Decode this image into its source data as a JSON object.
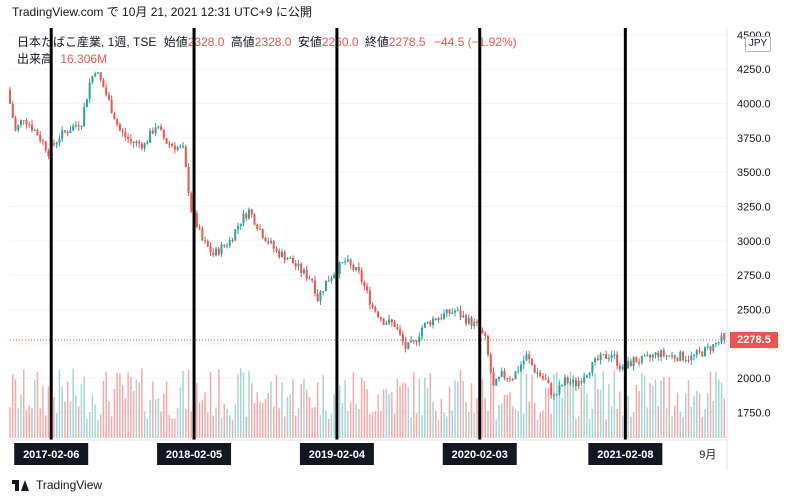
{
  "header": {
    "text": "TradingView.com で 10月 21, 2021 12:31 UTC+9 に公開"
  },
  "legend": {
    "symbol": "日本たばこ産業, 1週, TSE",
    "open_label": "始値",
    "open": "2328.0",
    "high_label": "高値",
    "high": "2328.0",
    "low_label": "安値",
    "low": "2260.0",
    "close_label": "終値",
    "close": "2278.5",
    "change": "−44.5 (−1.92%)",
    "volume_label": "出来高",
    "volume": "16.306M"
  },
  "currency": "JPY",
  "last_price_label": "2278.5",
  "footer": {
    "brand": "TradingView"
  },
  "colors": {
    "up": "#26a69a",
    "down": "#ef5350",
    "up_vol": "#a5d6d3",
    "down_vol": "#f7a9a7",
    "marker": "#000000"
  },
  "chart_data": {
    "type": "candlestick",
    "title": "",
    "xlabel": "",
    "ylabel": "",
    "ylim": [
      1550,
      4550
    ],
    "yticks": [
      1750,
      2000,
      2250,
      2500,
      2750,
      3000,
      3250,
      3500,
      3750,
      4000,
      4250,
      4500
    ],
    "ytick_labels": [
      "1750.0",
      "2000.0",
      "2250.0",
      "2500.0",
      "2750.0",
      "3000.0",
      "3250.0",
      "3500.0",
      "3750.0",
      "4000.0",
      "4250.0",
      "4500.0"
    ],
    "x_start": "2016-10-24",
    "x_end": "2021-10-25",
    "x_tick_labels": [
      {
        "date": "2021-09-06",
        "label": "9月"
      }
    ],
    "last_price": 2278.5,
    "markers": [
      {
        "date": "2017-02-06",
        "label": "2017-02-06"
      },
      {
        "date": "2018-02-05",
        "label": "2018-02-05"
      },
      {
        "date": "2019-02-04",
        "label": "2019-02-04"
      },
      {
        "date": "2020-02-03",
        "label": "2020-02-03"
      },
      {
        "date": "2021-02-08",
        "label": "2021-02-08"
      }
    ],
    "price_path": [
      [
        "2016-10-24",
        4100
      ],
      [
        "2016-11-14",
        3800
      ],
      [
        "2016-12-05",
        3900
      ],
      [
        "2017-01-09",
        3780
      ],
      [
        "2017-02-06",
        3650
      ],
      [
        "2017-03-06",
        3760
      ],
      [
        "2017-04-03",
        3820
      ],
      [
        "2017-05-01",
        3870
      ],
      [
        "2017-05-22",
        4150
      ],
      [
        "2017-06-05",
        4250
      ],
      [
        "2017-06-26",
        4120
      ],
      [
        "2017-08-07",
        3800
      ],
      [
        "2017-09-04",
        3720
      ],
      [
        "2017-10-09",
        3700
      ],
      [
        "2017-11-06",
        3840
      ],
      [
        "2017-12-04",
        3720
      ],
      [
        "2018-01-15",
        3660
      ],
      [
        "2018-02-05",
        3230
      ],
      [
        "2018-03-05",
        3000
      ],
      [
        "2018-04-02",
        2900
      ],
      [
        "2018-05-14",
        3000
      ],
      [
        "2018-06-11",
        3150
      ],
      [
        "2018-07-02",
        3220
      ],
      [
        "2018-08-06",
        3050
      ],
      [
        "2018-09-10",
        2920
      ],
      [
        "2018-10-08",
        2880
      ],
      [
        "2018-11-12",
        2780
      ],
      [
        "2018-12-10",
        2720
      ],
      [
        "2018-12-24",
        2580
      ],
      [
        "2019-01-14",
        2700
      ],
      [
        "2019-02-04",
        2770
      ],
      [
        "2019-03-04",
        2850
      ],
      [
        "2019-04-08",
        2760
      ],
      [
        "2019-05-13",
        2520
      ],
      [
        "2019-06-10",
        2420
      ],
      [
        "2019-07-08",
        2390
      ],
      [
        "2019-08-05",
        2220
      ],
      [
        "2019-08-26",
        2250
      ],
      [
        "2019-09-16",
        2370
      ],
      [
        "2019-10-14",
        2430
      ],
      [
        "2019-11-11",
        2460
      ],
      [
        "2019-12-09",
        2490
      ],
      [
        "2020-01-06",
        2430
      ],
      [
        "2020-02-03",
        2380
      ],
      [
        "2020-02-24",
        2280
      ],
      [
        "2020-03-16",
        1930
      ],
      [
        "2020-04-06",
        2020
      ],
      [
        "2020-05-04",
        2010
      ],
      [
        "2020-06-08",
        2160
      ],
      [
        "2020-06-29",
        2060
      ],
      [
        "2020-07-27",
        1980
      ],
      [
        "2020-08-17",
        1860
      ],
      [
        "2020-09-14",
        1980
      ],
      [
        "2020-10-12",
        1960
      ],
      [
        "2020-11-09",
        2050
      ],
      [
        "2020-12-07",
        2130
      ],
      [
        "2021-01-11",
        2180
      ],
      [
        "2021-02-08",
        2060
      ],
      [
        "2021-03-08",
        2130
      ],
      [
        "2021-04-05",
        2130
      ],
      [
        "2021-05-10",
        2180
      ],
      [
        "2021-06-07",
        2160
      ],
      [
        "2021-07-05",
        2160
      ],
      [
        "2021-08-02",
        2150
      ],
      [
        "2021-09-06",
        2200
      ],
      [
        "2021-10-04",
        2250
      ],
      [
        "2021-10-18",
        2278.5
      ]
    ]
  }
}
